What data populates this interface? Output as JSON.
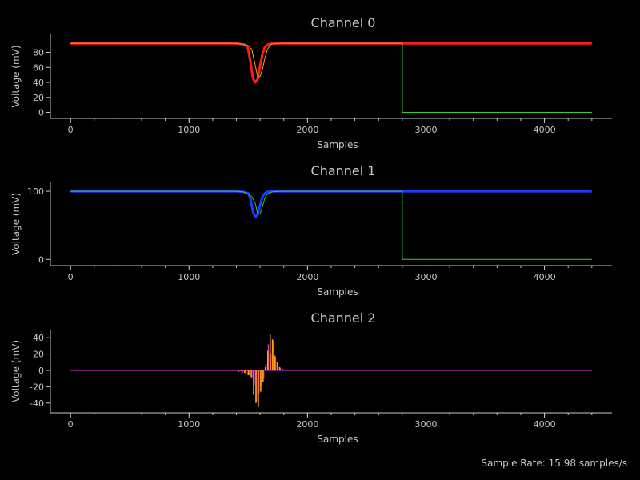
{
  "footer": {
    "sample_rate_text": "Sample Rate: 15.98 samples/s"
  },
  "colors": {
    "background": "#000000",
    "axis": "#c8c8c8",
    "text": "#c8c8c8",
    "title": "#c8c8c8"
  },
  "chart_data": [
    {
      "type": "line",
      "title": "Channel 0",
      "xlabel": "Samples",
      "ylabel": "Voltage (mV)",
      "xlim": [
        -170,
        4570
      ],
      "ylim": [
        -8,
        104
      ],
      "xticks": [
        0,
        1000,
        2000,
        3000,
        4000
      ],
      "yticks": [
        0,
        20,
        40,
        60,
        80
      ],
      "grid": false,
      "series": [
        {
          "color": "#ff1a1a",
          "width": 3,
          "x": [
            0,
            1400,
            1440,
            1470,
            1490,
            1500,
            1520,
            1540,
            1560,
            1580,
            1600,
            1620,
            1640,
            1660,
            1700,
            1800,
            2800,
            4400
          ],
          "y": [
            92,
            92,
            91,
            90,
            88,
            84,
            65,
            45,
            40,
            45,
            62,
            78,
            87,
            90,
            92,
            92,
            92,
            92
          ]
        },
        {
          "color": "#e6b000",
          "width": 1,
          "x": [
            0,
            1400,
            1460,
            1500,
            1530,
            1560,
            1580,
            1600,
            1620,
            1640,
            1660,
            1680,
            1700,
            1750,
            1800,
            2800,
            2800,
            4400
          ],
          "y": [
            92,
            92,
            91,
            89,
            84,
            62,
            47,
            48,
            58,
            72,
            83,
            89,
            91,
            92,
            92,
            92,
            0,
            0
          ]
        },
        {
          "color": "#33cc33",
          "width": 1,
          "x": [
            2800,
            2800,
            4400
          ],
          "y": [
            92,
            0,
            0
          ]
        }
      ]
    },
    {
      "type": "line",
      "title": "Channel 1",
      "xlabel": "Samples",
      "ylabel": "Voltage (mV)",
      "xlim": [
        -170,
        4570
      ],
      "ylim": [
        -9,
        113
      ],
      "xticks": [
        0,
        1000,
        2000,
        3000,
        4000
      ],
      "yticks": [
        0,
        100
      ],
      "grid": false,
      "series": [
        {
          "color": "#1a3cff",
          "width": 3,
          "x": [
            0,
            1400,
            1460,
            1500,
            1520,
            1540,
            1560,
            1580,
            1600,
            1620,
            1640,
            1660,
            1700,
            1800,
            2800,
            4400
          ],
          "y": [
            100,
            100,
            99,
            97,
            88,
            70,
            62,
            66,
            80,
            92,
            97,
            99,
            100,
            100,
            100,
            100
          ]
        },
        {
          "color": "#33cc33",
          "width": 1,
          "x": [
            0,
            1400,
            1460,
            1500,
            1530,
            1560,
            1580,
            1600,
            1620,
            1640,
            1660,
            1700,
            1760,
            1800,
            2800,
            2800,
            4400
          ],
          "y": [
            100,
            100,
            99,
            96,
            92,
            82,
            66,
            67,
            78,
            90,
            96,
            99,
            100,
            100,
            100,
            0,
            0
          ]
        }
      ]
    },
    {
      "type": "line",
      "title": "Channel 2",
      "xlabel": "Samples",
      "ylabel": "Voltage (mV)",
      "xlim": [
        -170,
        4570
      ],
      "ylim": [
        -52,
        50
      ],
      "xticks": [
        0,
        1000,
        2000,
        3000,
        4000
      ],
      "yticks": [
        -40,
        -20,
        0,
        20,
        40
      ],
      "grid": false,
      "baseline": {
        "color": "#9b2b8f",
        "value": 0
      },
      "spikes": [
        {
          "color": "#cc3aa8",
          "x": [
            1420,
            1450,
            1480,
            1510,
            1530,
            1550,
            1570,
            1590,
            1610,
            1630,
            1650,
            1670,
            1690,
            1710,
            1730,
            1750,
            1770,
            1790,
            1810
          ],
          "y": [
            -2,
            -3,
            -5,
            -6,
            -10,
            -18,
            -38,
            -28,
            -20,
            -10,
            8,
            32,
            20,
            36,
            16,
            6,
            3,
            2,
            1
          ]
        },
        {
          "color": "#ff9a1a",
          "x": [
            1440,
            1470,
            1500,
            1525,
            1545,
            1565,
            1585,
            1605,
            1625,
            1645,
            1665,
            1685,
            1705,
            1725,
            1745,
            1765
          ],
          "y": [
            -1,
            -3,
            -6,
            -8,
            -30,
            -40,
            -45,
            -26,
            -14,
            4,
            24,
            44,
            38,
            18,
            10,
            4
          ]
        }
      ]
    }
  ]
}
